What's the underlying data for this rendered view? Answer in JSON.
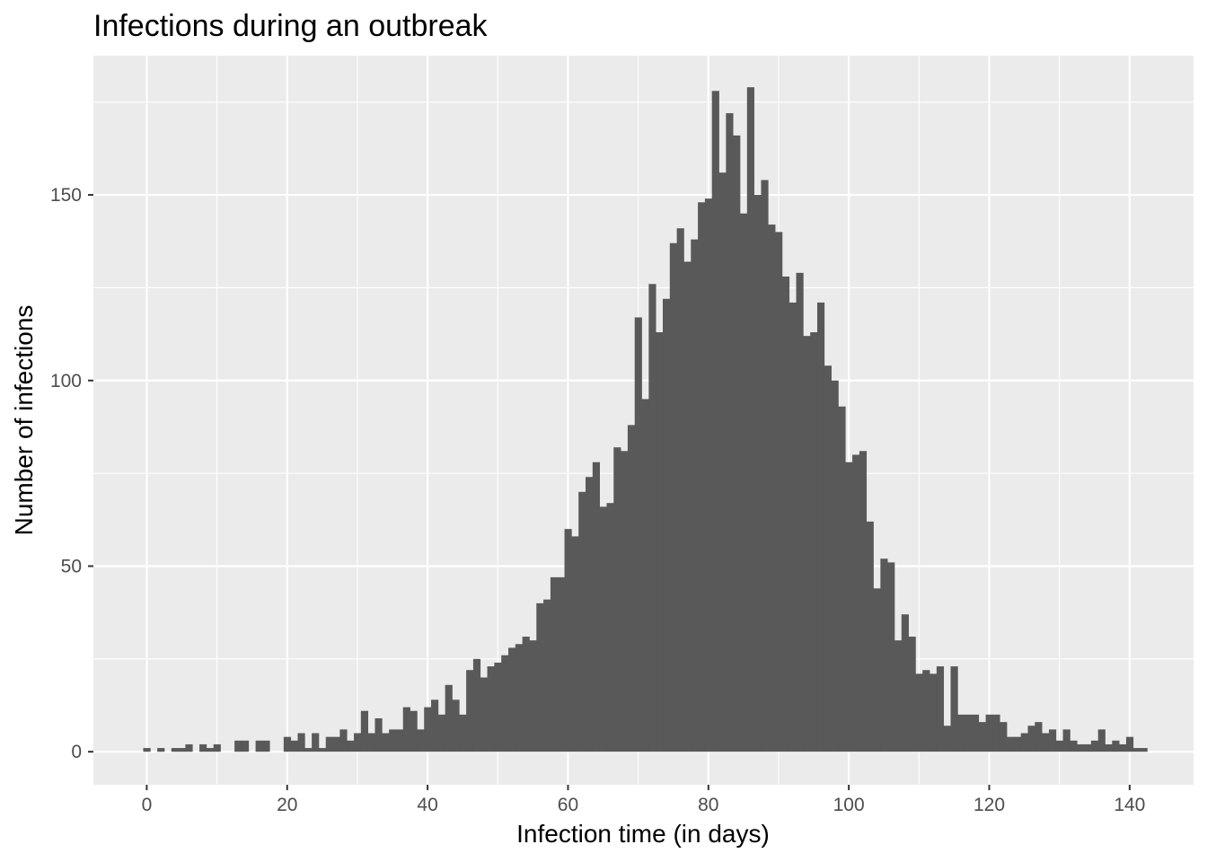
{
  "chart_data": {
    "type": "bar",
    "title": "Infections during an outbreak",
    "xlabel": "Infection time (in days)",
    "ylabel": "Number of infections",
    "xlim": [
      -7.6,
      149.1
    ],
    "ylim": [
      -8.9,
      187.5
    ],
    "x_ticks": [
      0,
      20,
      40,
      60,
      80,
      100,
      120,
      140
    ],
    "y_ticks": [
      0,
      50,
      100,
      150
    ],
    "grid": true,
    "bin_width": 1,
    "bin_start": -0.5,
    "x": [
      0,
      1,
      2,
      3,
      4,
      5,
      6,
      7,
      8,
      9,
      10,
      11,
      12,
      13,
      14,
      15,
      16,
      17,
      18,
      19,
      20,
      21,
      22,
      23,
      24,
      25,
      26,
      27,
      28,
      29,
      30,
      31,
      32,
      33,
      34,
      35,
      36,
      37,
      38,
      39,
      40,
      41,
      42,
      43,
      44,
      45,
      46,
      47,
      48,
      49,
      50,
      51,
      52,
      53,
      54,
      55,
      56,
      57,
      58,
      59,
      60,
      61,
      62,
      63,
      64,
      65,
      66,
      67,
      68,
      69,
      70,
      71,
      72,
      73,
      74,
      75,
      76,
      77,
      78,
      79,
      80,
      81,
      82,
      83,
      84,
      85,
      86,
      87,
      88,
      89,
      90,
      91,
      92,
      93,
      94,
      95,
      96,
      97,
      98,
      99,
      100,
      101,
      102,
      103,
      104,
      105,
      106,
      107,
      108,
      109,
      110,
      111,
      112,
      113,
      114,
      115,
      116,
      117,
      118,
      119,
      120,
      121,
      122,
      123,
      124,
      125,
      126,
      127,
      128,
      129,
      130,
      131,
      132,
      133,
      134,
      135,
      136,
      137,
      138,
      139,
      140,
      141,
      142
    ],
    "values": [
      1,
      0,
      1,
      0,
      1,
      1,
      2,
      0,
      2,
      1,
      2,
      0,
      0,
      3,
      3,
      0,
      3,
      3,
      0,
      0,
      4,
      3,
      5,
      1,
      5,
      1,
      4,
      4,
      6,
      3,
      5,
      11,
      5,
      9,
      5,
      6,
      6,
      12,
      11,
      6,
      12,
      14,
      10,
      18,
      14,
      10,
      22,
      25,
      20,
      23,
      24,
      26,
      28,
      29,
      31,
      30,
      40,
      41,
      47,
      47,
      60,
      58,
      70,
      74,
      78,
      66,
      67,
      82,
      81,
      88,
      117,
      95,
      126,
      113,
      122,
      137,
      141,
      132,
      138,
      148,
      149,
      178,
      156,
      172,
      166,
      145,
      179,
      150,
      154,
      142,
      140,
      128,
      121,
      129,
      112,
      113,
      121,
      104,
      100,
      93,
      78,
      80,
      81,
      62,
      44,
      52,
      51,
      30,
      37,
      31,
      21,
      22,
      21,
      23,
      7,
      23,
      10,
      10,
      10,
      8,
      10,
      10,
      8,
      4,
      4,
      5,
      7,
      8,
      5,
      6,
      3,
      6,
      3,
      2,
      2,
      3,
      6,
      2,
      3,
      2,
      4,
      1,
      1
    ]
  },
  "colors": {
    "panel_background": "#ebebeb",
    "grid_major": "#ffffff",
    "bar_fill": "#595959",
    "tick_text": "#4d4d4d"
  }
}
